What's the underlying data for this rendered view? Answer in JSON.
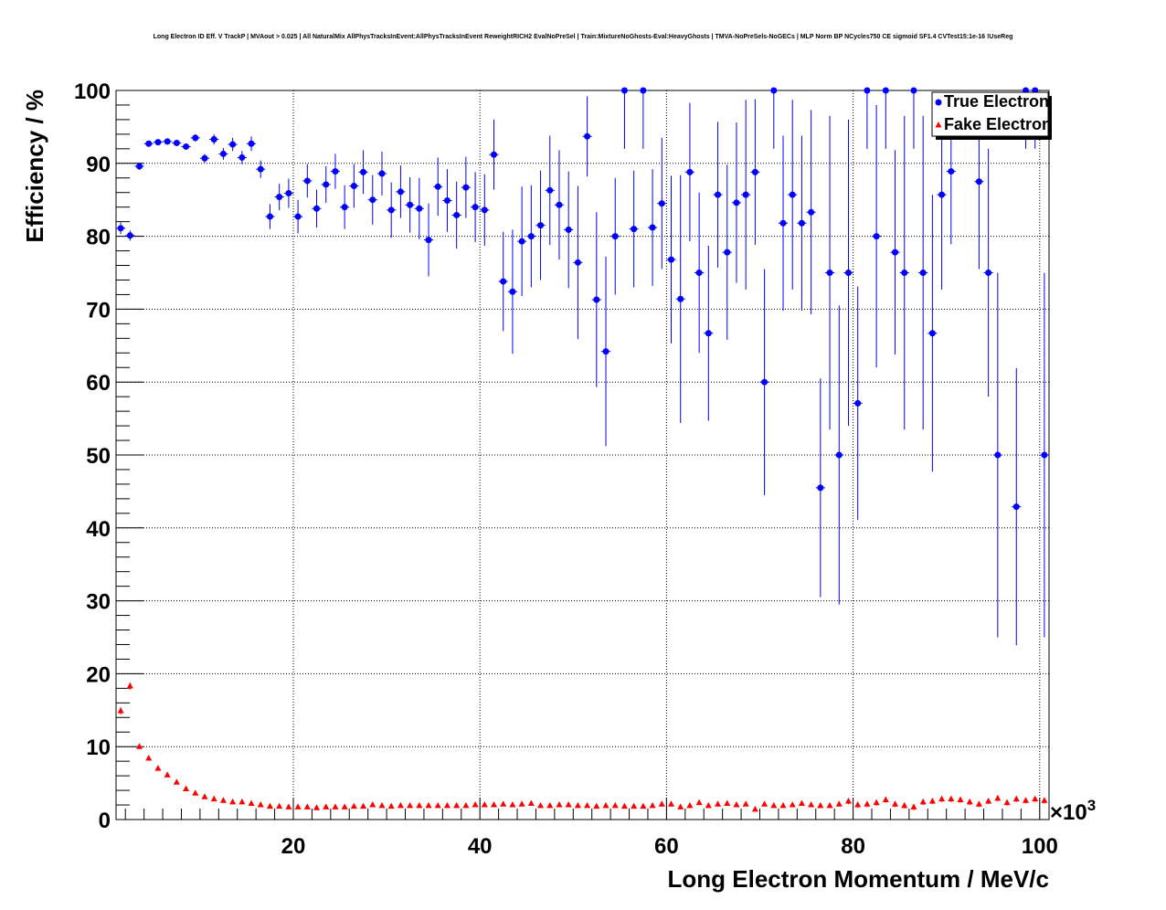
{
  "chart_data": {
    "type": "scatter",
    "title": "Long Electron ID Eff. V TrackP | MVAout > 0.025 | All NaturalMix AllPhysTracksInEvent:AllPhysTracksInEvent ReweightRICH2 EvalNoPreSel | Train:MixtureNoGhosts-Eval:HeavyGhosts | TMVA-NoPreSels-NoGECs | MLP Norm BP NCycles750 CE sigmoid SF1.4 CVTest15:1e-16 !UseReg",
    "xlabel": "Long Electron Momentum / MeV/c",
    "ylabel": "Efficiency / %",
    "x_exponent_label": "×10",
    "x_exponent_power": "3",
    "xlim": [
      1,
      101
    ],
    "ylim": [
      0,
      100
    ],
    "x_ticks": [
      "20",
      "40",
      "60",
      "80",
      "100"
    ],
    "y_ticks": [
      "0",
      "10",
      "20",
      "30",
      "40",
      "50",
      "60",
      "70",
      "80",
      "90",
      "100"
    ],
    "grid": true,
    "legend_position": "top-right",
    "colors": {
      "true_electron": "#0000ff",
      "fake_electron": "#ff0000"
    },
    "series": [
      {
        "name": "True Electron",
        "marker": "circle",
        "x": [
          1.5,
          2.5,
          3.5,
          4.5,
          5.5,
          6.5,
          7.5,
          8.5,
          9.5,
          10.5,
          11.5,
          12.5,
          13.5,
          14.5,
          15.5,
          16.5,
          17.5,
          18.5,
          19.5,
          20.5,
          21.5,
          22.5,
          23.5,
          24.5,
          25.5,
          26.5,
          27.5,
          28.5,
          29.5,
          30.5,
          31.5,
          32.5,
          33.5,
          34.5,
          35.5,
          36.5,
          37.5,
          38.5,
          39.5,
          40.5,
          41.5,
          42.5,
          43.5,
          44.5,
          45.5,
          46.5,
          47.5,
          48.5,
          49.5,
          50.5,
          51.5,
          52.5,
          53.5,
          54.5,
          55.5,
          56.5,
          57.5,
          58.5,
          59.5,
          60.5,
          61.5,
          62.5,
          63.5,
          64.5,
          65.5,
          66.5,
          67.5,
          68.5,
          69.5,
          70.5,
          71.5,
          72.5,
          73.5,
          74.5,
          75.5,
          76.5,
          77.5,
          78.5,
          79.5,
          80.5,
          81.5,
          82.5,
          83.5,
          84.5,
          85.5,
          86.5,
          87.5,
          88.5,
          89.5,
          90.5,
          93.5,
          94.5,
          95.5,
          97.5,
          98.5,
          99.5,
          100.5
        ],
        "y": [
          81.1,
          80.1,
          89.6,
          92.7,
          92.9,
          93.0,
          92.8,
          92.3,
          93.5,
          90.7,
          93.3,
          91.3,
          92.6,
          90.8,
          92.7,
          89.2,
          82.7,
          85.4,
          85.9,
          82.7,
          87.6,
          83.8,
          87.1,
          88.9,
          84.0,
          86.9,
          88.8,
          85.0,
          88.6,
          83.6,
          86.1,
          84.3,
          83.8,
          79.5,
          86.8,
          84.9,
          82.9,
          86.7,
          84.0,
          83.6,
          91.2,
          73.8,
          72.4,
          79.3,
          80.0,
          81.5,
          86.3,
          84.3,
          80.9,
          76.4,
          93.7,
          71.3,
          64.2,
          80.0,
          100,
          81.0,
          100,
          81.2,
          84.5,
          76.8,
          71.4,
          88.8,
          75.0,
          66.7,
          85.7,
          77.8,
          84.6,
          85.7,
          88.8,
          60.0,
          100,
          81.8,
          85.7,
          81.8,
          83.3,
          45.5,
          75.0,
          50.0,
          75.0,
          57.1,
          100,
          80.0,
          100,
          77.8,
          75.0,
          100,
          75.0,
          66.7,
          85.7,
          88.9,
          87.5,
          75.0,
          50.0,
          42.9,
          100,
          100,
          50.0
        ],
        "err": [
          0.8,
          0.7,
          0.5,
          0.3,
          0.3,
          0.3,
          0.3,
          0.4,
          0.5,
          0.6,
          0.7,
          0.8,
          0.9,
          0.9,
          1.0,
          1.2,
          1.7,
          1.8,
          2.0,
          2.3,
          2.3,
          2.6,
          2.5,
          2.4,
          3.0,
          3.0,
          3.0,
          3.4,
          3.0,
          3.8,
          3.6,
          3.8,
          4.2,
          5.0,
          4.0,
          4.3,
          4.6,
          4.2,
          4.8,
          4.9,
          4.8,
          6.8,
          8.5,
          7.5,
          7.0,
          7.5,
          7.5,
          7.5,
          8.0,
          10.5,
          5.5,
          12.0,
          13.0,
          8.0,
          8.0,
          8.0,
          8.0,
          8.0,
          9.0,
          11.5,
          17.0,
          9.5,
          11.0,
          12.0,
          10.0,
          12.0,
          11.0,
          13.0,
          10.0,
          15.5,
          8.0,
          12.0,
          13.0,
          12.0,
          14.0,
          15.0,
          21.5,
          20.5,
          21.0,
          16.0,
          8.0,
          18.0,
          8.0,
          14.0,
          21.5,
          8.0,
          21.5,
          19.0,
          13.0,
          10.0,
          12.0,
          17.0,
          25.0,
          19.0,
          8.0,
          8.0,
          25.0
        ]
      },
      {
        "name": "Fake Electron",
        "marker": "triangle",
        "x": [
          1.5,
          2.5,
          3.5,
          4.5,
          5.5,
          6.5,
          7.5,
          8.5,
          9.5,
          10.5,
          11.5,
          12.5,
          13.5,
          14.5,
          15.5,
          16.5,
          17.5,
          18.5,
          19.5,
          20.5,
          21.5,
          22.5,
          23.5,
          24.5,
          25.5,
          26.5,
          27.5,
          28.5,
          29.5,
          30.5,
          31.5,
          32.5,
          33.5,
          34.5,
          35.5,
          36.5,
          37.5,
          38.5,
          39.5,
          40.5,
          41.5,
          42.5,
          43.5,
          44.5,
          45.5,
          46.5,
          47.5,
          48.5,
          49.5,
          50.5,
          51.5,
          52.5,
          53.5,
          54.5,
          55.5,
          56.5,
          57.5,
          58.5,
          59.5,
          60.5,
          61.5,
          62.5,
          63.5,
          64.5,
          65.5,
          66.5,
          67.5,
          68.5,
          69.5,
          70.5,
          71.5,
          72.5,
          73.5,
          74.5,
          75.5,
          76.5,
          77.5,
          78.5,
          79.5,
          80.5,
          81.5,
          82.5,
          83.5,
          84.5,
          85.5,
          86.5,
          87.5,
          88.5,
          89.5,
          90.5,
          91.5,
          92.5,
          93.5,
          94.5,
          95.5,
          96.5,
          97.5,
          98.5,
          99.5,
          100.5
        ],
        "y": [
          14.9,
          18.3,
          10.0,
          8.4,
          7.0,
          6.1,
          5.1,
          4.2,
          3.6,
          3.1,
          2.8,
          2.6,
          2.4,
          2.4,
          2.2,
          2.0,
          1.8,
          1.8,
          1.7,
          1.7,
          1.7,
          1.6,
          1.7,
          1.7,
          1.7,
          1.8,
          1.8,
          2.0,
          1.9,
          1.8,
          1.9,
          1.9,
          1.9,
          1.9,
          1.9,
          1.9,
          1.9,
          1.9,
          2.0,
          2.0,
          2.0,
          2.1,
          2.0,
          2.1,
          2.2,
          1.9,
          1.9,
          2.0,
          2.0,
          1.9,
          1.9,
          1.8,
          1.9,
          1.9,
          1.8,
          1.8,
          1.8,
          1.9,
          2.1,
          2.1,
          1.7,
          1.9,
          2.3,
          1.9,
          2.1,
          2.2,
          2.0,
          2.1,
          1.4,
          2.1,
          1.9,
          1.9,
          2.0,
          2.2,
          2.0,
          1.9,
          1.9,
          2.1,
          2.5,
          2.0,
          2.1,
          2.3,
          2.7,
          2.1,
          1.9,
          1.7,
          2.4,
          2.5,
          2.8,
          2.8,
          2.7,
          2.4,
          2.1,
          2.5,
          2.9,
          2.3,
          2.8,
          2.6,
          2.8,
          2.6
        ],
        "err": [
          0.5,
          0.5,
          0.3,
          0.3,
          0.2,
          0.2,
          0.2,
          0.2,
          0.2,
          0.2,
          0.2,
          0.2,
          0.2,
          0.2,
          0.2,
          0.2,
          0.2,
          0.2,
          0.2,
          0.2,
          0.2,
          0.2,
          0.2,
          0.2,
          0.2,
          0.2,
          0.2,
          0.2,
          0.2,
          0.2,
          0.2,
          0.2,
          0.2,
          0.2,
          0.2,
          0.2,
          0.2,
          0.2,
          0.2,
          0.2,
          0.2,
          0.2,
          0.2,
          0.2,
          0.2,
          0.2,
          0.2,
          0.2,
          0.2,
          0.2,
          0.2,
          0.2,
          0.2,
          0.2,
          0.2,
          0.2,
          0.2,
          0.2,
          0.3,
          0.3,
          0.3,
          0.3,
          0.3,
          0.3,
          0.3,
          0.3,
          0.3,
          0.3,
          0.3,
          0.3,
          0.3,
          0.3,
          0.3,
          0.3,
          0.3,
          0.3,
          0.3,
          0.3,
          0.4,
          0.4,
          0.4,
          0.4,
          0.4,
          0.4,
          0.4,
          0.4,
          0.4,
          0.4,
          0.4,
          0.4,
          0.4,
          0.4,
          0.4,
          0.4,
          0.4,
          0.4,
          0.4,
          0.4,
          0.4,
          0.4
        ]
      }
    ]
  }
}
